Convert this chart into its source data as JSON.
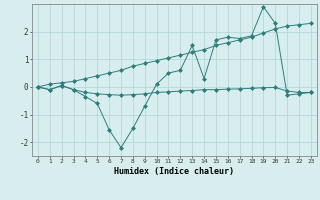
{
  "xlabel": "Humidex (Indice chaleur)",
  "x_values": [
    0,
    1,
    2,
    3,
    4,
    5,
    6,
    7,
    8,
    9,
    10,
    11,
    12,
    13,
    14,
    15,
    16,
    17,
    18,
    19,
    20,
    21,
    22,
    23
  ],
  "series": [
    [
      0.0,
      -0.1,
      0.05,
      -0.1,
      -0.35,
      -0.6,
      -1.55,
      -2.2,
      -1.5,
      -0.7,
      0.1,
      0.5,
      0.6,
      1.5,
      0.3,
      1.7,
      1.8,
      1.75,
      1.85,
      2.9,
      2.3,
      -0.3,
      -0.25,
      -0.2
    ],
    [
      0.0,
      -0.1,
      0.05,
      -0.1,
      -0.2,
      -0.25,
      -0.28,
      -0.3,
      -0.28,
      -0.25,
      -0.2,
      -0.18,
      -0.15,
      -0.13,
      -0.1,
      -0.1,
      -0.08,
      -0.07,
      -0.05,
      -0.03,
      -0.02,
      -0.15,
      -0.2,
      -0.2
    ],
    [
      0.0,
      0.1,
      0.15,
      0.2,
      0.3,
      0.4,
      0.5,
      0.6,
      0.75,
      0.85,
      0.95,
      1.05,
      1.15,
      1.25,
      1.35,
      1.5,
      1.6,
      1.7,
      1.8,
      1.95,
      2.1,
      2.2,
      2.25,
      2.3
    ]
  ],
  "line_color": "#2e7d7d",
  "marker": "D",
  "marker_size": 2,
  "bg_color": "#d8eeee",
  "grid_color": "#b5d8d8",
  "ylim": [
    -2.5,
    3.0
  ],
  "xlim": [
    -0.5,
    23.5
  ],
  "yticks": [
    -2,
    -1,
    0,
    1,
    2
  ],
  "xticks": [
    0,
    1,
    2,
    3,
    4,
    5,
    6,
    7,
    8,
    9,
    10,
    11,
    12,
    13,
    14,
    15,
    16,
    17,
    18,
    19,
    20,
    21,
    22,
    23
  ]
}
